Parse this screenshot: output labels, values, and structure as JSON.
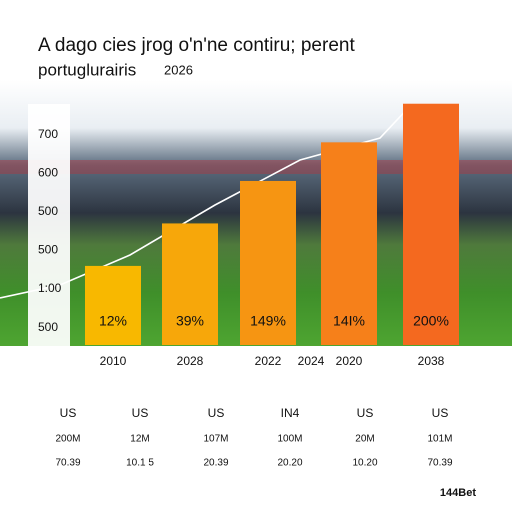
{
  "chart_data": {
    "type": "bar",
    "title": "A dago cies jrog o'n'ne contiru; perent",
    "subtitle": "portuglurairis",
    "year": "2026",
    "categories": [
      "2010",
      "2028",
      "2022",
      "2020",
      "2038"
    ],
    "extra_label": "2024",
    "values": [
      2.6,
      3.7,
      4.8,
      5.8,
      6.8
    ],
    "bar_labels": [
      "12%",
      "39%",
      "149%",
      "14I%",
      "200%"
    ],
    "colors": [
      "#f8b800",
      "#f7a70a",
      "#f69512",
      "#f6801a",
      "#f4691f"
    ],
    "ylim": [
      0.5,
      7
    ],
    "yticks": [
      {
        "value": 1,
        "label": "500"
      },
      {
        "value": 2,
        "label": "1:00"
      },
      {
        "value": 3,
        "label": "500"
      },
      {
        "value": 4,
        "label": "500"
      },
      {
        "value": 5,
        "label": "600"
      },
      {
        "value": 6,
        "label": "700"
      }
    ],
    "table_rows": [
      [
        "US",
        "US",
        "US",
        "IN4",
        "US",
        "US"
      ],
      [
        "200M",
        "12M",
        "107M",
        "100M",
        "20M",
        "101M"
      ],
      [
        "70.39",
        "10.1 5",
        "20.39",
        "20.20",
        "10.20",
        "70.39"
      ]
    ],
    "watermark": "144Bet"
  }
}
